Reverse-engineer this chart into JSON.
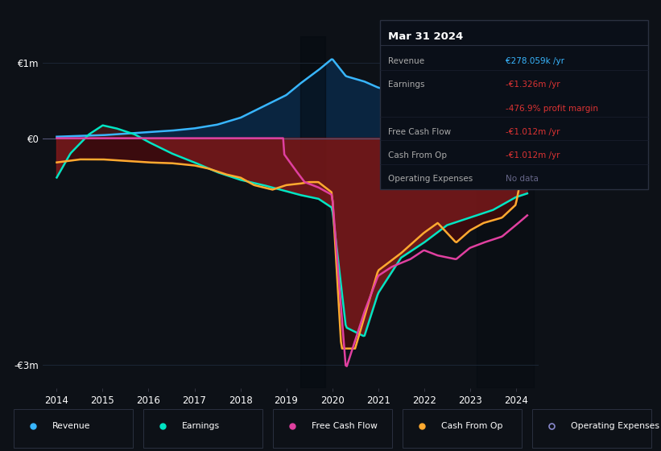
{
  "bg_color": "#0d1117",
  "ylim": [
    -3.3,
    1.35
  ],
  "xlim": [
    2013.7,
    2024.5
  ],
  "legend": [
    {
      "label": "Revenue",
      "color": "#38b6ff",
      "lw": 2
    },
    {
      "label": "Earnings",
      "color": "#00e5c4",
      "lw": 2
    },
    {
      "label": "Free Cash Flow",
      "color": "#e040a0",
      "lw": 2
    },
    {
      "label": "Cash From Op",
      "color": "#ffaa30",
      "lw": 2
    },
    {
      "label": "Operating Expenses",
      "color": "#8888cc",
      "lw": 1.5
    }
  ],
  "info_box": {
    "title": "Mar 31 2024",
    "rows": [
      {
        "label": "Revenue",
        "value": "€278.059k /yr",
        "value_color": "#38b6ff"
      },
      {
        "label": "Earnings",
        "value": "-€1.326m /yr",
        "value_color": "#dd3333"
      },
      {
        "label": "",
        "value": "-476.9% profit margin",
        "value_color": "#dd3333"
      },
      {
        "label": "Free Cash Flow",
        "value": "-€1.012m /yr",
        "value_color": "#dd3333"
      },
      {
        "label": "Cash From Op",
        "value": "-€1.012m /yr",
        "value_color": "#dd3333"
      },
      {
        "label": "Operating Expenses",
        "value": "No data",
        "value_color": "#666688"
      }
    ]
  }
}
